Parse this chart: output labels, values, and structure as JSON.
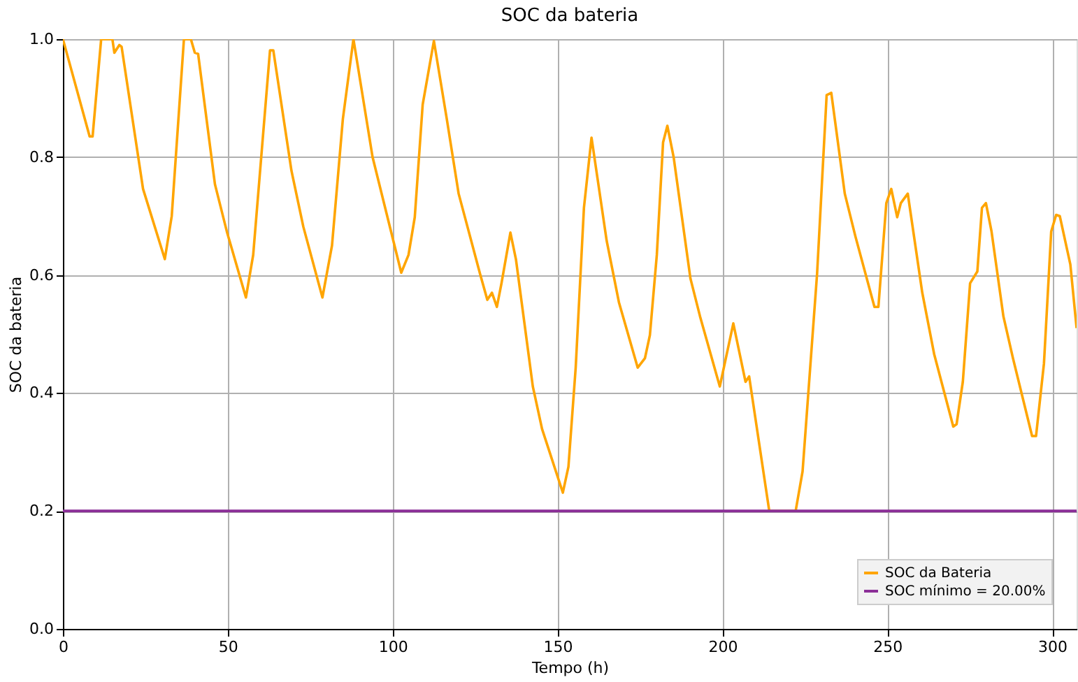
{
  "chart_data": {
    "type": "line",
    "title": "SOC da bateria",
    "xlabel": "Tempo (h)",
    "ylabel": "SOC da bateria",
    "xlim": [
      0,
      307.4
    ],
    "ylim": [
      0,
      1.0
    ],
    "xticks": [
      0,
      50,
      100,
      150,
      200,
      250,
      300
    ],
    "yticks": [
      {
        "value": 0,
        "label": "0.0"
      },
      0.2,
      0.4,
      0.6,
      0.8,
      {
        "value": 1,
        "label": "1.0"
      }
    ],
    "grid": true,
    "legend": "bottom right",
    "series": [
      {
        "name": "SOC da Bateria",
        "color": "#ffa500",
        "x": [
          0,
          8.1,
          9.0,
          11.6,
          15.0,
          15.6,
          17.1,
          17.8,
          24.3,
          30.9,
          33.0,
          36.7,
          38.8,
          40.0,
          41.0,
          46.1,
          49.7,
          55.5,
          57.7,
          62.8,
          63.8,
          69.3,
          72.9,
          78.7,
          81.6,
          84.9,
          88.1,
          93.9,
          102.6,
          104.8,
          106.7,
          109.1,
          112.5,
          116.4,
          120.0,
          126.5,
          128.7,
          130.1,
          131.6,
          133.0,
          135.7,
          137.4,
          142.5,
          145.3,
          151.6,
          153.3,
          155.5,
          158.0,
          160.3,
          164.9,
          168.6,
          174.3,
          176.5,
          178.0,
          180.1,
          182.0,
          183.3,
          185.2,
          190.3,
          193.2,
          199.2,
          203.3,
          207.0,
          208.1,
          214.2,
          222.2,
          224.3,
          228.7,
          231.6,
          233.0,
          237.1,
          240.3,
          246.1,
          247.3,
          249.7,
          251.2,
          253.0,
          254.1,
          256.2,
          260.6,
          264.2,
          270.0,
          271.0,
          272.9,
          275.1,
          277.3,
          278.7,
          279.9,
          281.6,
          285.2,
          288.1,
          293.9,
          295.1,
          297.5,
          299.7,
          301.2,
          302.3,
          305.5,
          307.4
        ],
        "values": [
          1.0,
          0.835,
          0.835,
          1.0,
          1.0,
          0.977,
          0.99,
          0.987,
          0.746,
          0.627,
          0.7,
          1.0,
          1.0,
          0.977,
          0.975,
          0.754,
          0.674,
          0.562,
          0.634,
          0.981,
          0.981,
          0.777,
          0.682,
          0.562,
          0.65,
          0.865,
          1.0,
          0.8,
          0.604,
          0.634,
          0.698,
          0.889,
          0.997,
          0.865,
          0.738,
          0.602,
          0.558,
          0.57,
          0.546,
          0.586,
          0.672,
          0.626,
          0.411,
          0.339,
          0.231,
          0.275,
          0.443,
          0.714,
          0.833,
          0.658,
          0.554,
          0.443,
          0.459,
          0.498,
          0.634,
          0.825,
          0.853,
          0.8,
          0.594,
          0.53,
          0.411,
          0.518,
          0.419,
          0.428,
          0.2,
          0.2,
          0.267,
          0.602,
          0.905,
          0.909,
          0.738,
          0.666,
          0.546,
          0.546,
          0.722,
          0.746,
          0.698,
          0.722,
          0.738,
          0.57,
          0.466,
          0.343,
          0.347,
          0.419,
          0.586,
          0.606,
          0.714,
          0.722,
          0.674,
          0.53,
          0.459,
          0.327,
          0.327,
          0.45,
          0.674,
          0.702,
          0.7,
          0.618,
          0.51
        ]
      }
    ],
    "ref_lines": [
      {
        "axis": "y",
        "value": 0.2,
        "label": "SOC mínimo = 20.00%",
        "color": "#8b2f97"
      }
    ]
  }
}
